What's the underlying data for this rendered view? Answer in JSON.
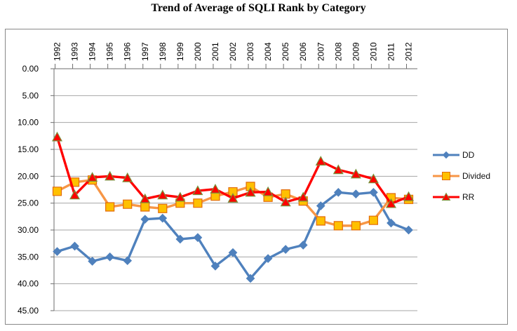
{
  "title": "Trend of Average of SQLI Rank by Category",
  "chart_data": {
    "type": "line",
    "title": "Trend of Average of SQLI Rank by Category",
    "categories": [
      "1992",
      "1993",
      "1994",
      "1995",
      "1996",
      "1997",
      "1998",
      "1999",
      "2000",
      "2001",
      "2002",
      "2003",
      "2004",
      "2005",
      "2006",
      "2007",
      "2008",
      "2009",
      "2010",
      "2011",
      "2012"
    ],
    "x_axis": {
      "label": "",
      "tick_position": "top",
      "label_rotation": -90
    },
    "y_axis": {
      "label": "",
      "min": 0,
      "max": 45,
      "step": 5,
      "inverted": true,
      "tick_labels": [
        "0.00",
        "5.00",
        "10.00",
        "15.00",
        "20.00",
        "25.00",
        "30.00",
        "35.00",
        "40.00",
        "45.00"
      ]
    },
    "grid": true,
    "legend_position": "right",
    "series": [
      {
        "name": "DD",
        "marker": "diamond",
        "color": "#4F81BD",
        "marker_fill": "#4F81BD",
        "marker_stroke": "#4F81BD",
        "values": [
          34.0,
          33.0,
          35.8,
          35.0,
          35.7,
          28.0,
          27.8,
          31.7,
          31.4,
          36.7,
          34.2,
          39.0,
          35.3,
          33.6,
          32.8,
          25.5,
          23.0,
          23.3,
          23.0,
          28.7,
          30.0
        ]
      },
      {
        "name": "Divided",
        "marker": "square",
        "color": "#F79646",
        "marker_fill": "#FFC000",
        "marker_stroke": "#E26B0A",
        "values": [
          22.8,
          21.1,
          20.7,
          25.7,
          25.2,
          25.7,
          26.0,
          25.0,
          25.0,
          23.7,
          22.9,
          21.9,
          23.9,
          23.3,
          24.6,
          28.3,
          29.2,
          29.2,
          28.2,
          24.0,
          24.3
        ]
      },
      {
        "name": "RR",
        "marker": "triangle",
        "color": "#FF0000",
        "marker_fill": "#FF0000",
        "marker_stroke": "#77933C",
        "values": [
          12.7,
          23.5,
          20.2,
          20.0,
          20.3,
          24.2,
          23.5,
          23.9,
          22.7,
          22.4,
          24.1,
          23.0,
          22.9,
          24.8,
          23.9,
          17.2,
          18.8,
          19.6,
          20.5,
          25.1,
          23.8
        ]
      }
    ]
  },
  "colors": {
    "gridline": "#A6A6A6",
    "axis": "#6E6E6E",
    "border": "#898989",
    "label_text": "#000000"
  }
}
